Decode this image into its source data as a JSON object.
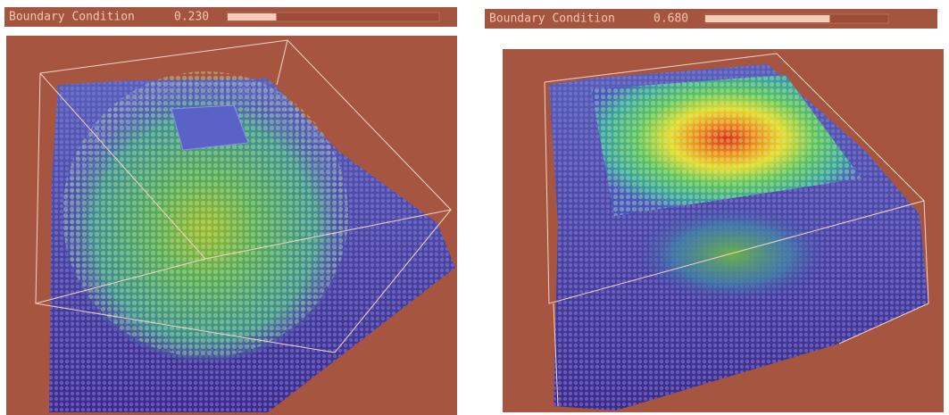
{
  "panels": [
    {
      "label": "Boundary Condition",
      "value": "0.230"
    },
    {
      "label": "Boundary Condition",
      "value": "0.680"
    }
  ]
}
